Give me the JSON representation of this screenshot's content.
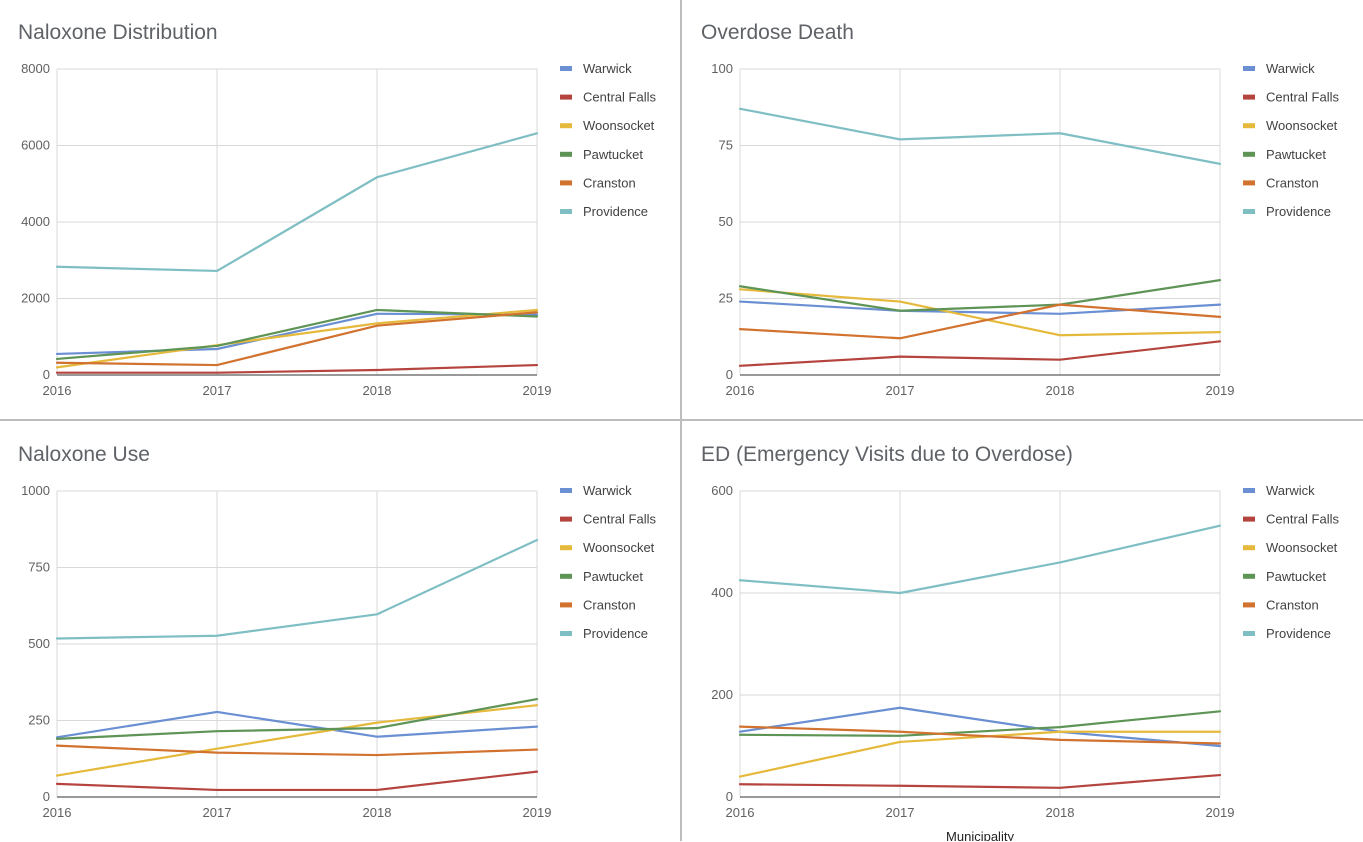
{
  "colors": {
    "Warwick": "#6a8fd2",
    "Central Falls": "#b5443e",
    "Woonsocket": "#e5b93b",
    "Pawtucket": "#5e9455",
    "Cranston": "#d2722f",
    "Providence": "#7fbfc4"
  },
  "chart_data": [
    {
      "type": "line",
      "title": "Naloxone Distribution",
      "xlabel": "",
      "ylabel": "",
      "categories": [
        "2016",
        "2017",
        "2018",
        "2019"
      ],
      "ylim": [
        0,
        8000
      ],
      "yticks": [
        "0",
        "2000",
        "4000",
        "6000",
        "8000"
      ],
      "yticks_values": [
        0,
        2000,
        4000,
        6000,
        8000
      ],
      "grid": true,
      "legend": "right",
      "series": [
        {
          "name": "Warwick",
          "values": [
            550,
            680,
            1600,
            1580
          ]
        },
        {
          "name": "Central Falls",
          "values": [
            60,
            60,
            130,
            260
          ]
        },
        {
          "name": "Woonsocket",
          "values": [
            200,
            780,
            1350,
            1700
          ]
        },
        {
          "name": "Pawtucket",
          "values": [
            420,
            760,
            1700,
            1530
          ]
        },
        {
          "name": "Cranston",
          "values": [
            320,
            260,
            1290,
            1640
          ]
        },
        {
          "name": "Providence",
          "values": [
            2830,
            2720,
            5170,
            6320
          ]
        }
      ]
    },
    {
      "type": "line",
      "title": "Overdose Death",
      "xlabel": "",
      "ylabel": "",
      "categories": [
        "2016",
        "2017",
        "2018",
        "2019"
      ],
      "ylim": [
        0,
        100
      ],
      "yticks": [
        "0",
        "25",
        "50",
        "75",
        "100"
      ],
      "yticks_values": [
        0,
        25,
        50,
        75,
        100
      ],
      "grid": true,
      "legend": "right",
      "series": [
        {
          "name": "Warwick",
          "values": [
            24,
            21,
            20,
            23
          ]
        },
        {
          "name": "Central Falls",
          "values": [
            3,
            6,
            5,
            11
          ]
        },
        {
          "name": "Woonsocket",
          "values": [
            28,
            24,
            13,
            14
          ]
        },
        {
          "name": "Pawtucket",
          "values": [
            29,
            21,
            23,
            31
          ]
        },
        {
          "name": "Cranston",
          "values": [
            15,
            12,
            23,
            19
          ]
        },
        {
          "name": "Providence",
          "values": [
            87,
            77,
            79,
            69
          ]
        }
      ]
    },
    {
      "type": "line",
      "title": "Naloxone Use",
      "xlabel": "",
      "ylabel": "",
      "categories": [
        "2016",
        "2017",
        "2018",
        "2019"
      ],
      "ylim": [
        0,
        1000
      ],
      "yticks": [
        "0",
        "250",
        "500",
        "750",
        "1000"
      ],
      "yticks_values": [
        0,
        250,
        500,
        750,
        1000
      ],
      "grid": true,
      "legend": "right",
      "series": [
        {
          "name": "Warwick",
          "values": [
            195,
            278,
            197,
            230
          ]
        },
        {
          "name": "Central Falls",
          "values": [
            43,
            23,
            23,
            83
          ]
        },
        {
          "name": "Woonsocket",
          "values": [
            70,
            158,
            243,
            300
          ]
        },
        {
          "name": "Pawtucket",
          "values": [
            190,
            215,
            225,
            320
          ]
        },
        {
          "name": "Cranston",
          "values": [
            168,
            145,
            137,
            155
          ]
        },
        {
          "name": "Providence",
          "values": [
            518,
            527,
            597,
            840
          ]
        }
      ]
    },
    {
      "type": "line",
      "title": "ED (Emergency Visits due to Overdose)",
      "xlabel": "Municipality",
      "ylabel": "",
      "categories": [
        "2016",
        "2017",
        "2018",
        "2019"
      ],
      "ylim": [
        0,
        600
      ],
      "yticks": [
        "0",
        "200",
        "400",
        "600"
      ],
      "yticks_values": [
        0,
        200,
        400,
        600
      ],
      "grid": true,
      "legend": "right",
      "series": [
        {
          "name": "Warwick",
          "values": [
            128,
            175,
            128,
            100
          ]
        },
        {
          "name": "Central Falls",
          "values": [
            25,
            22,
            18,
            43
          ]
        },
        {
          "name": "Woonsocket",
          "values": [
            40,
            108,
            128,
            128
          ]
        },
        {
          "name": "Pawtucket",
          "values": [
            122,
            120,
            137,
            168
          ]
        },
        {
          "name": "Cranston",
          "values": [
            138,
            128,
            112,
            105
          ]
        },
        {
          "name": "Providence",
          "values": [
            425,
            400,
            460,
            532
          ]
        }
      ]
    }
  ]
}
